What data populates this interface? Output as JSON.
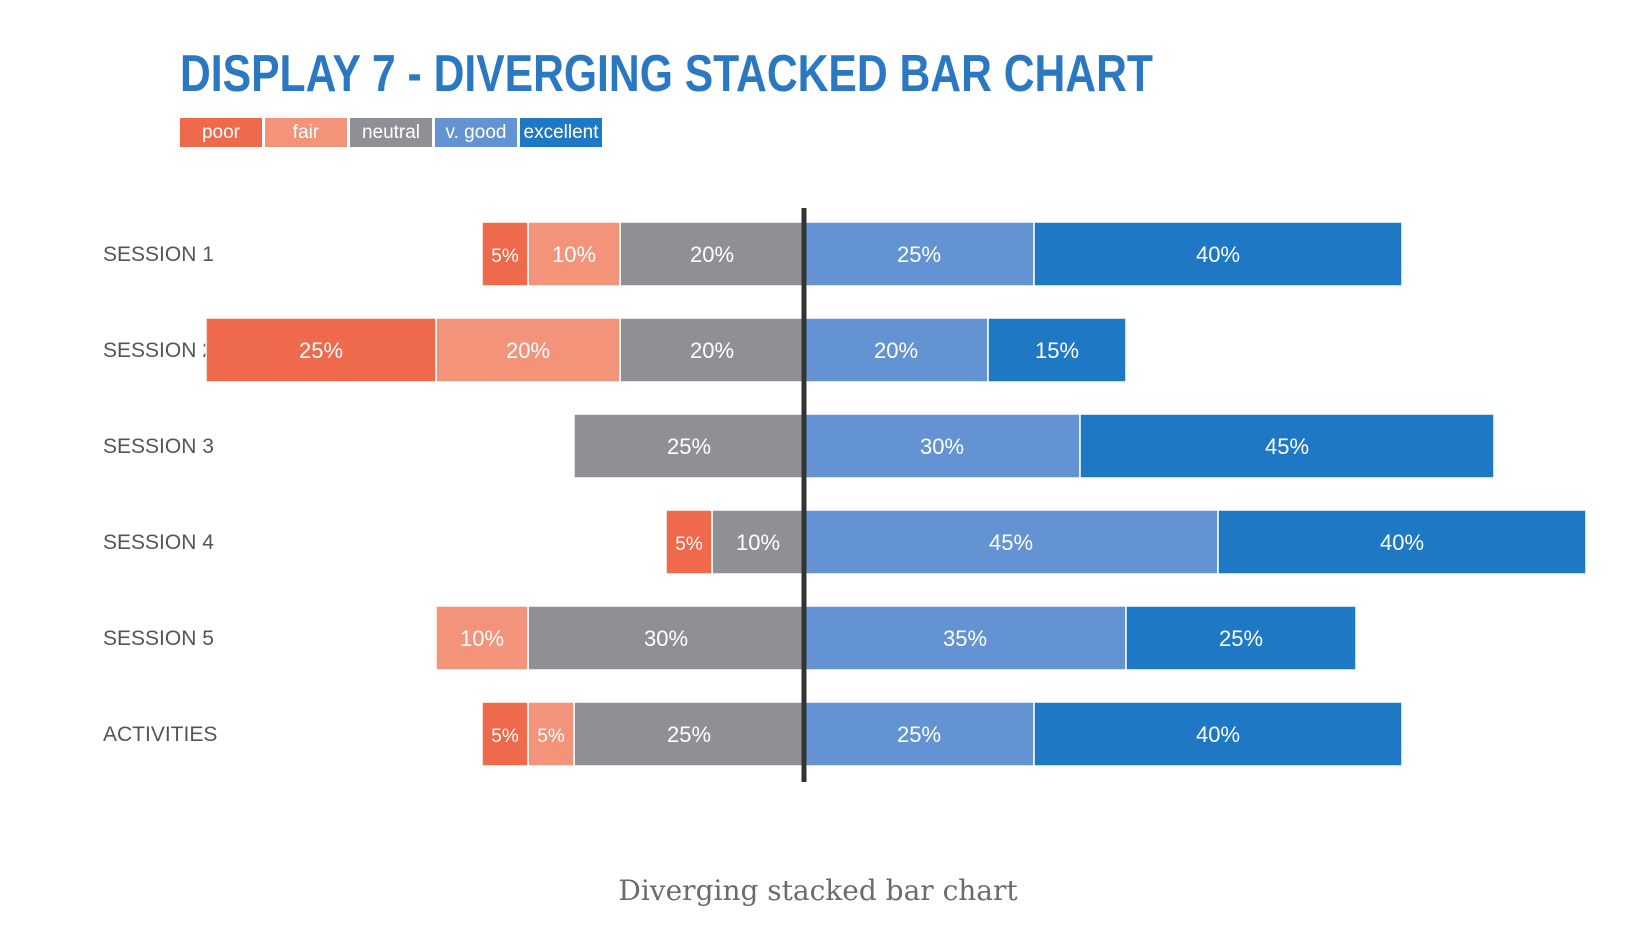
{
  "caption": "Diverging stacked bar chart",
  "chart_data": {
    "type": "bar",
    "orientation": "horizontal",
    "stacking": "diverging",
    "title": "DISPLAY 7 - DIVERGING STACKED BAR CHART",
    "xlabel": "",
    "ylabel": "",
    "legend_position": "top-left",
    "grid": false,
    "categories": [
      "SESSION 1",
      "SESSION 2",
      "SESSION 3",
      "SESSION 4",
      "SESSION 5",
      "ACTIVITIES"
    ],
    "series": [
      {
        "name": "poor",
        "side": "negative",
        "color": "#ef6a4c",
        "values": [
          5,
          25,
          0,
          5,
          0,
          5
        ]
      },
      {
        "name": "fair",
        "side": "negative",
        "color": "#f2937a",
        "values": [
          10,
          20,
          0,
          0,
          10,
          5
        ]
      },
      {
        "name": "neutral",
        "side": "negative",
        "color": "#8f9093",
        "values": [
          20,
          20,
          25,
          10,
          30,
          25
        ]
      },
      {
        "name": "v. good",
        "side": "positive",
        "color": "#6393d3",
        "values": [
          25,
          20,
          30,
          45,
          35,
          25
        ]
      },
      {
        "name": "excellent",
        "side": "positive",
        "color": "#1f78c4",
        "values": [
          40,
          15,
          45,
          40,
          25,
          40
        ]
      }
    ],
    "value_suffix": "%",
    "center_line_color": "#333333",
    "category_label_color": "#555555"
  }
}
